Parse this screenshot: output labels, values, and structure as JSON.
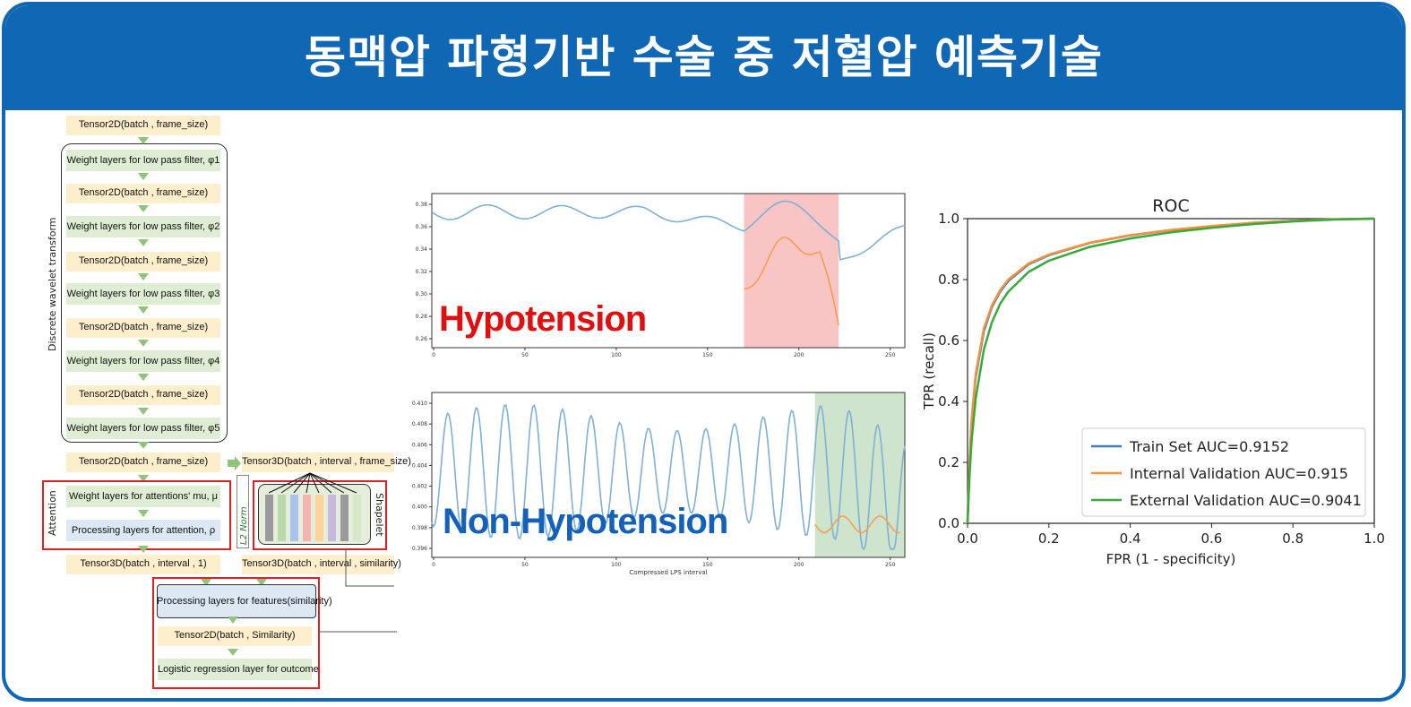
{
  "header": {
    "title": "동맥압 파형기반 수술 중 저혈압 예측기술"
  },
  "architecture": {
    "tensor_batch_frame": "Tensor2D(batch , frame_size)",
    "weight_labels": [
      "Weight layers for low pass filter, φ1",
      "Weight layers for low pass filter, φ2",
      "Weight layers for low pass filter, φ3",
      "Weight layers for low pass filter, φ4",
      "Weight layers for low pass filter, φ5"
    ],
    "dwt_label": "Discrete wavelet transform",
    "tensor3d_frame": "Tensor3D(batch , interval , frame_size)",
    "attention_mu": "Weight layers for attentions' mu, μ",
    "attention_proc": "Processing layers for attention, ρ",
    "attention_label": "Attention",
    "shapelet_label": "Shapelet",
    "l2norm_label": "L2 Norm",
    "tensor3d_interval": "Tensor3D(batch , interval , 1)",
    "tensor3d_similarity": "Tensor3D(batch , interval , similarity)",
    "proc_features": "Processing layers for features(similarity)",
    "tensor2d_similarity": "Tensor2D(batch , Similarity)",
    "logistic": "Logistic regression layer for outcome",
    "shapelet_colors": [
      "#9a9a9a",
      "#b8d9a8",
      "#a9c4e8",
      "#f5b4b0",
      "#fcd49a",
      "#c7b8de",
      "#9a9a9a",
      "#d6e8c8"
    ]
  },
  "waveforms": {
    "hypo_label": "Hypotension",
    "hypo_color": "#e01010",
    "nonhypo_label": "Non-Hypotension",
    "nonhypo_color": "#1560b8",
    "top_yticks": [
      "0.38",
      "0.36",
      "0.34",
      "0.32",
      "0.30",
      "0.28",
      "0.26"
    ],
    "top_xticks": [
      "0",
      "50",
      "100",
      "150",
      "200",
      "250"
    ],
    "bottom_yticks": [
      "0.410",
      "0.408",
      "0.406",
      "0.404",
      "0.402",
      "0.400",
      "0.398",
      "0.396"
    ],
    "bottom_xticks": [
      "0",
      "50",
      "100",
      "150",
      "200",
      "250"
    ],
    "bottom_xlabel": "Compressed LPS interval"
  },
  "chart_data": {
    "type": "line",
    "title": "ROC",
    "xlabel": "FPR (1 - specificity)",
    "ylabel": "TPR (recall)",
    "xlim": [
      0,
      1
    ],
    "ylim": [
      0,
      1
    ],
    "xticks": [
      "0.0",
      "0.2",
      "0.4",
      "0.6",
      "0.8",
      "1.0"
    ],
    "yticks": [
      "0.0",
      "0.2",
      "0.4",
      "0.6",
      "0.8",
      "1.0"
    ],
    "legend_position": "bottom-right",
    "grid": false,
    "series": [
      {
        "name": "Train Set AUC=0.9152",
        "color": "#3d7fbf",
        "x": [
          0,
          0.005,
          0.01,
          0.02,
          0.04,
          0.06,
          0.08,
          0.1,
          0.15,
          0.2,
          0.3,
          0.4,
          0.5,
          0.6,
          0.7,
          0.8,
          0.9,
          1.0
        ],
        "y": [
          0,
          0.2,
          0.33,
          0.48,
          0.63,
          0.71,
          0.76,
          0.795,
          0.85,
          0.88,
          0.92,
          0.945,
          0.962,
          0.975,
          0.986,
          0.993,
          0.998,
          1.0
        ]
      },
      {
        "name": "Internal Validation AUC=0.915",
        "color": "#f5923e",
        "x": [
          0,
          0.005,
          0.01,
          0.02,
          0.04,
          0.06,
          0.08,
          0.1,
          0.15,
          0.2,
          0.3,
          0.4,
          0.5,
          0.6,
          0.7,
          0.8,
          0.9,
          1.0
        ],
        "y": [
          0,
          0.21,
          0.34,
          0.49,
          0.64,
          0.715,
          0.765,
          0.8,
          0.853,
          0.882,
          0.921,
          0.946,
          0.963,
          0.976,
          0.986,
          0.993,
          0.998,
          1.0
        ]
      },
      {
        "name": "External Validation AUC=0.9041",
        "color": "#3aa83a",
        "x": [
          0,
          0.005,
          0.01,
          0.02,
          0.04,
          0.06,
          0.08,
          0.1,
          0.15,
          0.2,
          0.3,
          0.4,
          0.5,
          0.6,
          0.7,
          0.8,
          0.9,
          1.0
        ],
        "y": [
          0,
          0.16,
          0.27,
          0.41,
          0.57,
          0.66,
          0.72,
          0.76,
          0.825,
          0.862,
          0.907,
          0.935,
          0.955,
          0.97,
          0.982,
          0.991,
          0.997,
          1.0
        ]
      }
    ]
  }
}
